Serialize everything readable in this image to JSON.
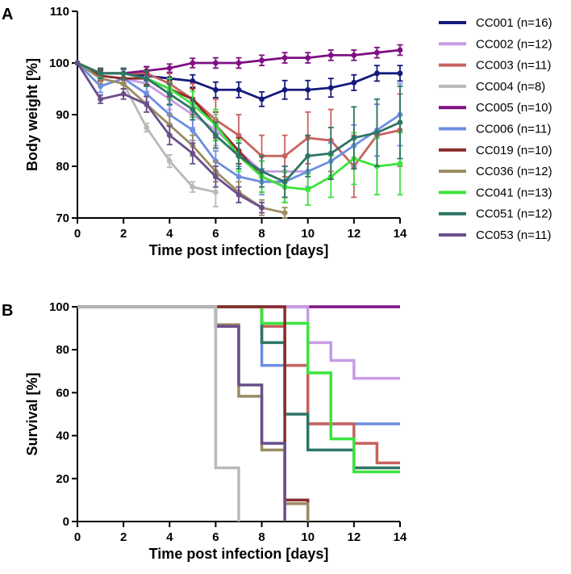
{
  "chart_data": [
    {
      "panel": "A",
      "type": "line",
      "xlabel": "Time post infection [days]",
      "ylabel": "Body weight [%]",
      "xlim": [
        0,
        14
      ],
      "ylim": [
        70,
        110
      ],
      "xticks": [
        0,
        2,
        4,
        6,
        8,
        10,
        12,
        14
      ],
      "yticks": [
        70,
        80,
        90,
        100,
        110
      ],
      "series": [
        {
          "name": "CC001 (n=16)",
          "color": "#141a7a",
          "x": [
            0,
            1,
            2,
            3,
            4,
            5,
            6,
            7,
            8,
            9,
            10,
            11,
            12,
            13,
            14
          ],
          "y": [
            100,
            98,
            98,
            97.5,
            97,
            96.5,
            94.8,
            94.8,
            93,
            94.8,
            94.8,
            95.2,
            96.2,
            98,
            98
          ],
          "err": [
            0,
            0.8,
            0.8,
            0.9,
            1,
            1.2,
            1.5,
            1.5,
            1.4,
            1.8,
            1.8,
            1.8,
            1.5,
            1.5,
            1.5
          ]
        },
        {
          "name": "CC002 (n=12)",
          "color": "#c79be6",
          "x": [
            0,
            1,
            2,
            3,
            4,
            5,
            6,
            7,
            8,
            9,
            10
          ],
          "y": [
            100,
            97.5,
            97,
            96,
            93,
            90,
            87,
            83,
            79,
            79,
            79
          ],
          "err": [
            0,
            1,
            1,
            1.5,
            2,
            2.5,
            3,
            3,
            3,
            3,
            3
          ]
        },
        {
          "name": "CC003 (n=11)",
          "color": "#c8625e",
          "x": [
            0,
            1,
            2,
            3,
            4,
            5,
            6,
            7,
            8,
            9,
            10,
            11,
            12,
            13,
            14
          ],
          "y": [
            100,
            98,
            98,
            98,
            96,
            93,
            89,
            86,
            82,
            82,
            85.5,
            85,
            80,
            86,
            87
          ],
          "err": [
            0,
            1,
            1,
            1.2,
            2,
            3,
            4,
            4,
            4,
            4,
            5,
            6,
            6,
            6,
            7
          ]
        },
        {
          "name": "CC004 (n=8)",
          "color": "#b9b9b9",
          "x": [
            0,
            1,
            2,
            3,
            4,
            5,
            6
          ],
          "y": [
            100,
            97,
            96,
            87.5,
            81,
            76,
            75
          ],
          "err": [
            0,
            1,
            1,
            0.8,
            1.2,
            1,
            2.8
          ]
        },
        {
          "name": "CC005 (n=10)",
          "color": "#7f1083",
          "x": [
            0,
            1,
            2,
            3,
            4,
            5,
            6,
            7,
            8,
            9,
            10,
            11,
            12,
            13,
            14
          ],
          "y": [
            100,
            98,
            98,
            98.5,
            99,
            100,
            100,
            100,
            100.5,
            101,
            101,
            101.5,
            101.5,
            102,
            102.5
          ],
          "err": [
            0,
            0.8,
            0.8,
            0.8,
            0.8,
            0.9,
            1,
            1,
            1,
            1,
            1,
            1,
            1,
            1,
            1
          ]
        },
        {
          "name": "CC006 (n=11)",
          "color": "#6d8ee0",
          "x": [
            0,
            1,
            2,
            3,
            4,
            5,
            6,
            7,
            8,
            9,
            10,
            11,
            12,
            13,
            14
          ],
          "y": [
            100,
            95.5,
            97,
            94,
            90,
            87,
            81,
            78,
            77,
            77,
            79,
            81,
            84,
            87,
            90
          ],
          "err": [
            0,
            1.2,
            1.2,
            1.5,
            1.8,
            2,
            2,
            2,
            2.5,
            3,
            3,
            3.5,
            4,
            5,
            6
          ]
        },
        {
          "name": "CC019 (n=10)",
          "color": "#8a2b2b",
          "x": [
            0,
            1,
            2,
            3,
            4,
            5,
            6,
            7,
            8,
            9
          ],
          "y": [
            100,
            97.5,
            97,
            97,
            95,
            93,
            88,
            83,
            78,
            76
          ],
          "err": [
            0,
            1,
            1,
            1.2,
            1.5,
            2,
            2.5,
            2.5,
            3,
            3
          ]
        },
        {
          "name": "CC036 (n=12)",
          "color": "#9b8b61",
          "x": [
            0,
            1,
            2,
            3,
            4,
            5,
            6,
            7,
            8,
            9
          ],
          "y": [
            100,
            97,
            96,
            92,
            88,
            84,
            79,
            75,
            72,
            71
          ],
          "err": [
            0,
            1,
            1,
            1.5,
            2,
            2,
            2,
            2,
            1.5,
            1
          ]
        },
        {
          "name": "CC041 (n=13)",
          "color": "#3ce43c",
          "x": [
            0,
            1,
            2,
            3,
            4,
            5,
            6,
            7,
            8,
            9,
            10,
            11,
            12,
            13,
            14
          ],
          "y": [
            100,
            98,
            98,
            97,
            95,
            92,
            88,
            82,
            78,
            76,
            75.5,
            78,
            81.5,
            80,
            80.5
          ],
          "err": [
            0,
            1,
            1,
            1.5,
            2,
            2.5,
            3,
            3,
            3,
            3,
            3,
            4,
            5,
            5.5,
            6
          ]
        },
        {
          "name": "CC051 (n=12)",
          "color": "#2e7565",
          "x": [
            0,
            1,
            2,
            3,
            4,
            5,
            6,
            7,
            8,
            9,
            10,
            11,
            12,
            13,
            14
          ],
          "y": [
            100,
            98,
            98,
            97,
            94,
            91,
            86,
            82,
            79,
            77,
            82,
            82.5,
            85.5,
            86.5,
            88.5
          ],
          "err": [
            0,
            1,
            1,
            1.5,
            2,
            2,
            2.5,
            2.5,
            3,
            3,
            4,
            5,
            6,
            6.5,
            7
          ]
        },
        {
          "name": "CC053 (n=11)",
          "color": "#6a4f8b",
          "x": [
            0,
            1,
            2,
            3,
            4,
            5,
            6,
            7,
            8
          ],
          "y": [
            100,
            93,
            94,
            92,
            86,
            82.5,
            78,
            74.5,
            72
          ],
          "err": [
            0,
            0.8,
            1,
            1.5,
            1.8,
            2,
            2,
            1.5,
            1
          ]
        }
      ],
      "legend": "right"
    },
    {
      "panel": "B",
      "type": "line",
      "step": true,
      "xlabel": "Time post infection [days]",
      "ylabel": "Survival [%]",
      "xlim": [
        0,
        14
      ],
      "ylim": [
        0,
        100
      ],
      "xticks": [
        0,
        2,
        4,
        6,
        8,
        10,
        12,
        14
      ],
      "yticks": [
        0,
        20,
        40,
        60,
        80,
        100
      ],
      "series": [
        {
          "name": "CC005",
          "color": "#7f1083",
          "x": [
            0,
            14
          ],
          "y": [
            100,
            100
          ]
        },
        {
          "name": "CC002",
          "color": "#c79be6",
          "x": [
            0,
            10,
            11,
            12,
            14
          ],
          "y": [
            100,
            83.3,
            75,
            66.7,
            66.7
          ]
        },
        {
          "name": "CC006",
          "color": "#6d8ee0",
          "x": [
            0,
            8,
            9,
            10,
            14
          ],
          "y": [
            100,
            72.7,
            72.7,
            45.5,
            45.5
          ]
        },
        {
          "name": "CC003",
          "color": "#c8625e",
          "x": [
            0,
            8,
            9,
            10,
            12,
            13,
            14
          ],
          "y": [
            100,
            90.9,
            72.7,
            45.5,
            36.4,
            27.3,
            27.3
          ]
        },
        {
          "name": "CC051",
          "color": "#2e7565",
          "x": [
            0,
            8,
            9,
            10,
            12,
            14
          ],
          "y": [
            100,
            83.3,
            50,
            33.3,
            25,
            25
          ]
        },
        {
          "name": "CC041",
          "color": "#3ce43c",
          "x": [
            0,
            8,
            10,
            11,
            12,
            14
          ],
          "y": [
            100,
            92.3,
            69.2,
            38.5,
            23.1,
            23.1
          ]
        },
        {
          "name": "CC019",
          "color": "#8a2b2b",
          "x": [
            0,
            9,
            10
          ],
          "y": [
            100,
            10,
            0
          ]
        },
        {
          "name": "CC036",
          "color": "#9b8b61",
          "x": [
            0,
            6,
            7,
            8,
            9,
            10
          ],
          "y": [
            100,
            91.7,
            58.3,
            33.3,
            8.3,
            0
          ]
        },
        {
          "name": "CC053",
          "color": "#6a4f8b",
          "x": [
            0,
            6,
            7,
            8,
            9
          ],
          "y": [
            100,
            90.9,
            63.6,
            36.4,
            0
          ]
        },
        {
          "name": "CC004",
          "color": "#b9b9b9",
          "x": [
            0,
            6,
            7
          ],
          "y": [
            100,
            25,
            0
          ]
        }
      ]
    }
  ],
  "panel_labels": {
    "a": "A",
    "b": "B"
  }
}
